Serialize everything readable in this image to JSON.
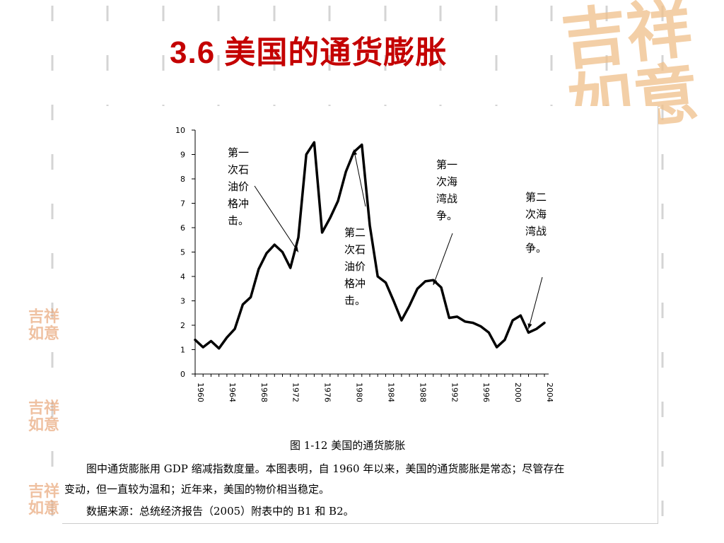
{
  "slide": {
    "title": "3.6 美国的通货膨胀",
    "seal_text": "吉祥如意",
    "seal_small_text": "吉祥如意"
  },
  "figure": {
    "caption": "图 1-12  美国的通货膨胀",
    "paragraph_line1": "图中通货膨胀用 GDP 缩减指数度量。本图表明，自 1960 年以来，美国的通货膨胀是常态；尽管存在",
    "paragraph_line2": "变动，但一直较为温和；近年来，美国的物价相当稳定。",
    "source": "数据来源：总统经济报告（2005）附表中的 B1 和 B2。"
  },
  "colors": {
    "title": "#c40000",
    "line": "#000000",
    "seal": "#f0c08a"
  },
  "chart_data": {
    "type": "line",
    "title": "",
    "xlabel": "",
    "ylabel": "",
    "xlim": [
      1960,
      2004
    ],
    "ylim": [
      0,
      10
    ],
    "yticks": [
      0,
      1,
      2,
      3,
      4,
      5,
      6,
      7,
      8,
      9,
      10
    ],
    "xticks": [
      1960,
      1964,
      1968,
      1972,
      1976,
      1980,
      1984,
      1988,
      1992,
      1996,
      2000,
      2004
    ],
    "grid": false,
    "series": [
      {
        "name": "",
        "x": [
          1960,
          1961,
          1962,
          1963,
          1964,
          1965,
          1966,
          1967,
          1968,
          1969,
          1970,
          1971,
          1972,
          1973,
          1974,
          1975,
          1976,
          1977,
          1978,
          1979,
          1980,
          1981,
          1982,
          1983,
          1984,
          1985,
          1986,
          1987,
          1988,
          1989,
          1990,
          1991,
          1992,
          1993,
          1994,
          1995,
          1996,
          1997,
          1998,
          1999,
          2000,
          2001,
          2002,
          2003,
          2004
        ],
        "values": [
          1.4,
          1.1,
          1.35,
          1.05,
          1.5,
          1.85,
          2.85,
          3.15,
          4.3,
          4.95,
          5.3,
          5.0,
          4.35,
          5.6,
          9.0,
          9.5,
          5.8,
          6.4,
          7.1,
          8.3,
          9.1,
          9.4,
          6.1,
          4.0,
          3.75,
          3.0,
          2.2,
          2.8,
          3.5,
          3.8,
          3.85,
          3.55,
          2.3,
          2.35,
          2.15,
          2.1,
          1.95,
          1.7,
          1.1,
          1.4,
          2.2,
          2.4,
          1.7,
          1.85,
          2.1
        ]
      }
    ],
    "annotations": [
      {
        "lines": [
          "第一",
          "次石",
          "油价",
          "格冲",
          "击。"
        ],
        "target": [
          1973,
          5.0
        ]
      },
      {
        "lines": [
          "第二",
          "次石",
          "油价",
          "格冲",
          "击。"
        ],
        "target": [
          1980,
          9.2
        ]
      },
      {
        "lines": [
          "第一",
          "次海",
          "湾战",
          "争。"
        ],
        "target": [
          1990,
          3.65
        ]
      },
      {
        "lines": [
          "第二",
          "次海",
          "湾战",
          "争。"
        ],
        "target": [
          2002,
          1.85
        ]
      }
    ]
  }
}
